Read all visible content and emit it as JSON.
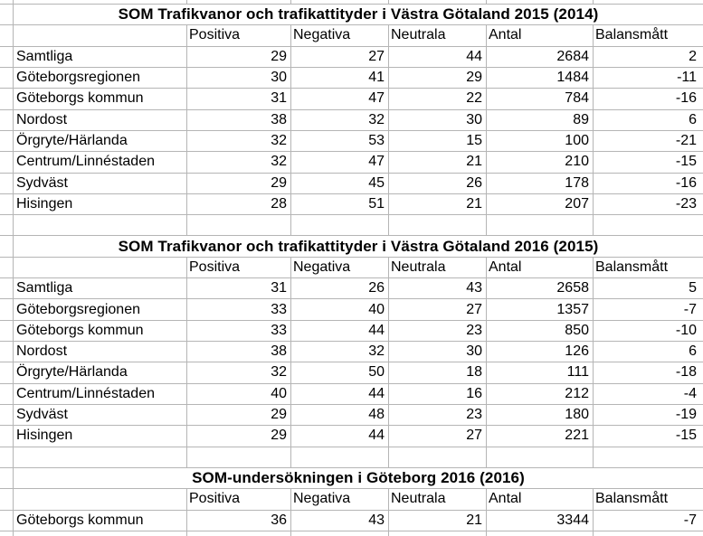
{
  "sheet": {
    "colors": {
      "gridline": "#b5b5b5",
      "text": "#000000",
      "background": "#ffffff"
    },
    "tables": [
      {
        "title": "SOM Trafikvanor och trafikattityder i Västra Götaland 2015 (2014)",
        "headers": [
          "Positiva",
          "Negativa",
          "Neutrala",
          "Antal",
          "Balansmått"
        ],
        "rows": [
          {
            "label": "Samtliga",
            "values": [
              29,
              27,
              44,
              2684,
              2
            ]
          },
          {
            "label": "Göteborgsregionen",
            "values": [
              30,
              41,
              29,
              1484,
              -11
            ]
          },
          {
            "label": "Göteborgs kommun",
            "values": [
              31,
              47,
              22,
              784,
              -16
            ]
          },
          {
            "label": "Nordost",
            "values": [
              38,
              32,
              30,
              89,
              6
            ]
          },
          {
            "label": "Örgryte/Härlanda",
            "values": [
              32,
              53,
              15,
              100,
              -21
            ]
          },
          {
            "label": "Centrum/Linnéstaden",
            "values": [
              32,
              47,
              21,
              210,
              -15
            ]
          },
          {
            "label": "Sydväst",
            "values": [
              29,
              45,
              26,
              178,
              -16
            ]
          },
          {
            "label": "Hisingen",
            "values": [
              28,
              51,
              21,
              207,
              -23
            ]
          }
        ]
      },
      {
        "title": "SOM Trafikvanor och trafikattityder i Västra Götaland 2016 (2015)",
        "headers": [
          "Positiva",
          "Negativa",
          "Neutrala",
          "Antal",
          "Balansmått"
        ],
        "rows": [
          {
            "label": "Samtliga",
            "values": [
              31,
              26,
              43,
              2658,
              5
            ]
          },
          {
            "label": "Göteborgsregionen",
            "values": [
              33,
              40,
              27,
              1357,
              -7
            ]
          },
          {
            "label": "Göteborgs kommun",
            "values": [
              33,
              44,
              23,
              850,
              -10
            ]
          },
          {
            "label": "Nordost",
            "values": [
              38,
              32,
              30,
              126,
              6
            ]
          },
          {
            "label": "Örgryte/Härlanda",
            "values": [
              32,
              50,
              18,
              111,
              -18
            ]
          },
          {
            "label": "Centrum/Linnéstaden",
            "values": [
              40,
              44,
              16,
              212,
              -4
            ]
          },
          {
            "label": "Sydväst",
            "values": [
              29,
              48,
              23,
              180,
              -19
            ]
          },
          {
            "label": "Hisingen",
            "values": [
              29,
              44,
              27,
              221,
              -15
            ]
          }
        ]
      },
      {
        "title": "SOM-undersökningen i Göteborg 2016 (2016)",
        "headers": [
          "Positiva",
          "Negativa",
          "Neutrala",
          "Antal",
          "Balansmått"
        ],
        "rows": [
          {
            "label": "Göteborgs kommun",
            "values": [
              36,
              43,
              21,
              3344,
              -7
            ]
          }
        ]
      }
    ]
  }
}
